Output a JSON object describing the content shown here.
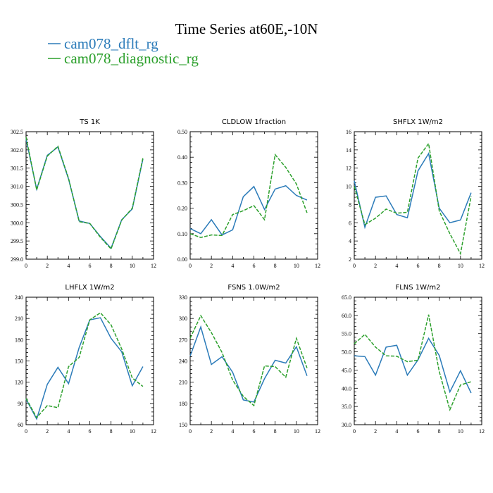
{
  "title": "Time Series at60E,-10N",
  "legend": [
    {
      "label": "cam078_dflt_rg",
      "color": "#2b7bb9"
    },
    {
      "label": "cam078_diagnostic_rg",
      "color": "#2ca02c"
    }
  ],
  "chart_data": [
    {
      "type": "line",
      "title": "TS   1K",
      "x": [
        0,
        1,
        2,
        3,
        4,
        5,
        6,
        7,
        8,
        9,
        10,
        11
      ],
      "xlim": [
        0,
        12
      ],
      "xticks": [
        0,
        2,
        4,
        6,
        8,
        10,
        12
      ],
      "ylim": [
        299.0,
        302.5
      ],
      "yticks": [
        "299.0",
        "299.5",
        "300.0",
        "300.5",
        "301.0",
        "301.5",
        "302.0",
        "302.5"
      ],
      "series": [
        {
          "name": "cam078_dflt_rg",
          "values": [
            302.3,
            300.92,
            301.85,
            302.08,
            301.2,
            300.05,
            299.98,
            299.62,
            299.3,
            300.08,
            300.38,
            301.75
          ]
        },
        {
          "name": "cam078_diagnostic_rg",
          "values": [
            302.35,
            300.9,
            301.83,
            302.1,
            301.22,
            300.03,
            299.98,
            299.6,
            299.28,
            300.07,
            300.4,
            301.78
          ]
        }
      ]
    },
    {
      "type": "line",
      "title": "CLDLOW   1fraction",
      "x": [
        0,
        1,
        2,
        3,
        4,
        5,
        6,
        7,
        8,
        9,
        10,
        11
      ],
      "xlim": [
        0,
        12
      ],
      "xticks": [
        0,
        2,
        4,
        6,
        8,
        10,
        12
      ],
      "ylim": [
        0.0,
        0.5
      ],
      "yticks": [
        "0.00",
        "0.10",
        "0.20",
        "0.30",
        "0.40",
        "0.50"
      ],
      "series": [
        {
          "name": "cam078_dflt_rg",
          "values": [
            0.12,
            0.1,
            0.155,
            0.095,
            0.115,
            0.245,
            0.285,
            0.195,
            0.275,
            0.288,
            0.25,
            0.232
          ]
        },
        {
          "name": "cam078_diagnostic_rg",
          "values": [
            0.1,
            0.085,
            0.095,
            0.093,
            0.175,
            0.19,
            0.21,
            0.155,
            0.41,
            0.36,
            0.295,
            0.182
          ]
        }
      ]
    },
    {
      "type": "line",
      "title": "SHFLX   1W/m2",
      "x": [
        0,
        1,
        2,
        3,
        4,
        5,
        6,
        7,
        8,
        9,
        10,
        11
      ],
      "xlim": [
        0,
        12
      ],
      "xticks": [
        0,
        2,
        4,
        6,
        8,
        10,
        12
      ],
      "ylim": [
        2,
        16
      ],
      "yticks": [
        "2",
        "4",
        "6",
        "8",
        "10",
        "12",
        "14",
        "16"
      ],
      "series": [
        {
          "name": "cam078_dflt_rg",
          "values": [
            10.6,
            5.5,
            8.8,
            8.95,
            6.9,
            6.55,
            11.7,
            13.6,
            7.6,
            6.0,
            6.3,
            9.3
          ]
        },
        {
          "name": "cam078_diagnostic_rg",
          "values": [
            10.0,
            5.8,
            6.5,
            7.5,
            7.05,
            7.15,
            13.1,
            14.7,
            7.3,
            4.8,
            2.6,
            8.9
          ]
        }
      ]
    },
    {
      "type": "line",
      "title": "LHFLX   1W/m2",
      "x": [
        0,
        1,
        2,
        3,
        4,
        5,
        6,
        7,
        8,
        9,
        10,
        11
      ],
      "xlim": [
        0,
        12
      ],
      "xticks": [
        0,
        2,
        4,
        6,
        8,
        10,
        12
      ],
      "ylim": [
        60,
        240
      ],
      "yticks": [
        "60",
        "90",
        "120",
        "150",
        "180",
        "210",
        "240"
      ],
      "series": [
        {
          "name": "cam078_dflt_rg",
          "values": [
            96,
            68,
            117,
            141,
            118,
            169,
            208,
            211,
            182,
            163,
            115,
            142
          ]
        },
        {
          "name": "cam078_diagnostic_rg",
          "values": [
            97,
            70,
            87,
            84,
            142,
            155,
            208,
            218,
            201,
            167,
            126,
            114
          ]
        }
      ]
    },
    {
      "type": "line",
      "title": "FSNS   1.0W/m2",
      "x": [
        0,
        1,
        2,
        3,
        4,
        5,
        6,
        7,
        8,
        9,
        10,
        11
      ],
      "xlim": [
        0,
        12
      ],
      "xticks": [
        0,
        2,
        4,
        6,
        8,
        10,
        12
      ],
      "ylim": [
        150,
        330
      ],
      "yticks": [
        "150",
        "180",
        "210",
        "240",
        "270",
        "300",
        "330"
      ],
      "series": [
        {
          "name": "cam078_dflt_rg",
          "values": [
            247,
            288,
            235,
            246,
            224,
            185,
            182,
            215,
            241,
            237,
            260,
            219
          ]
        },
        {
          "name": "cam078_diagnostic_rg",
          "values": [
            272,
            304,
            280,
            252,
            213,
            190,
            177,
            233,
            232,
            217,
            272,
            230
          ]
        }
      ]
    },
    {
      "type": "line",
      "title": "FLNS   1W/m2",
      "x": [
        0,
        1,
        2,
        3,
        4,
        5,
        6,
        7,
        8,
        9,
        10,
        11
      ],
      "xlim": [
        0,
        12
      ],
      "xticks": [
        0,
        2,
        4,
        6,
        8,
        10,
        12
      ],
      "ylim": [
        30.0,
        65.0
      ],
      "yticks": [
        "30.0",
        "35.0",
        "40.0",
        "45.0",
        "50.0",
        "55.0",
        "60.0",
        "65.0"
      ],
      "series": [
        {
          "name": "cam078_dflt_rg",
          "values": [
            48.9,
            48.7,
            43.6,
            51.3,
            51.8,
            43.6,
            47.8,
            53.7,
            49.0,
            39.0,
            44.8,
            38.7
          ]
        },
        {
          "name": "cam078_diagnostic_rg",
          "values": [
            52.2,
            54.8,
            51.3,
            48.9,
            48.8,
            47.3,
            47.7,
            60.2,
            44.6,
            34.1,
            40.9,
            41.8
          ]
        }
      ]
    }
  ]
}
